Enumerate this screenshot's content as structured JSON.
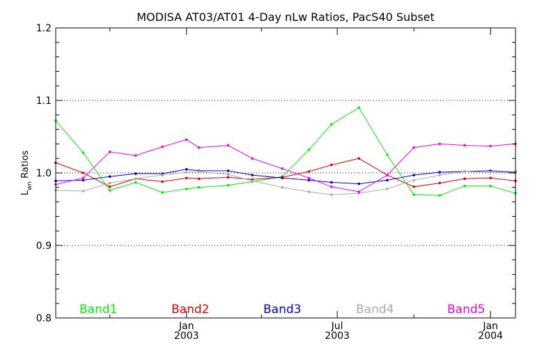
{
  "chart_data": {
    "type": "line",
    "title": "MODISA AT03/AT01 4-Day nLw Ratios, PacS40 Subset",
    "ylabel": "L",
    "ylabel_subscript": "wn",
    "ylabel_suffix": " Ratios",
    "ylim": [
      0.8,
      1.2
    ],
    "yticks": [
      "0.8",
      "0.9",
      "1.0",
      "1.1",
      "1.2"
    ],
    "xlim": [
      "2002-07-28",
      "2004-01-31"
    ],
    "xticks": [
      {
        "date": "2003-01-01",
        "month": "Jan",
        "year": "2003"
      },
      {
        "date": "2003-07-01",
        "month": "Jul",
        "year": "2003"
      },
      {
        "date": "2004-01-01",
        "month": "Jan",
        "year": "2004"
      }
    ],
    "grid_y": [
      0.9,
      1.0,
      1.1
    ],
    "grid": "dotted horizontal",
    "legend_position": "bottom, horizontal inside plot",
    "x": [
      "2002-07-28",
      "2002-08-30",
      "2002-10-01",
      "2002-11-01",
      "2002-12-03",
      "2003-01-01",
      "2003-01-16",
      "2003-02-20",
      "2003-03-21",
      "2003-04-26",
      "2003-05-28",
      "2003-06-24",
      "2003-07-27",
      "2003-08-30",
      "2003-10-01",
      "2003-11-01",
      "2003-12-01",
      "2004-01-01",
      "2004-01-31"
    ],
    "series": [
      {
        "name": "Band1",
        "color": "#00ee00",
        "values": [
          1.072,
          1.028,
          0.976,
          0.987,
          0.973,
          0.978,
          0.98,
          0.983,
          0.988,
          0.995,
          1.032,
          1.067,
          1.09,
          1.025,
          0.97,
          0.969,
          0.982,
          0.982,
          0.972
        ]
      },
      {
        "name": "Band2",
        "color": "#dd0000",
        "values": [
          1.014,
          1.0,
          0.981,
          0.992,
          0.988,
          0.993,
          0.992,
          0.994,
          0.991,
          0.994,
          1.002,
          1.011,
          1.02,
          0.997,
          0.981,
          0.986,
          0.992,
          0.993,
          0.989
        ]
      },
      {
        "name": "Band3",
        "color": "#0000cc",
        "values": [
          0.989,
          0.99,
          0.995,
          0.999,
          0.999,
          1.005,
          1.003,
          1.003,
          0.997,
          0.993,
          0.99,
          0.987,
          0.985,
          0.99,
          0.997,
          1.001,
          1.002,
          1.003,
          1.001
        ]
      },
      {
        "name": "Band4",
        "color": "#aaaaaa",
        "values": [
          0.976,
          0.975,
          0.986,
          0.992,
          0.997,
          1.001,
          1.002,
          0.998,
          0.989,
          0.98,
          0.974,
          0.97,
          0.972,
          0.978,
          0.99,
          0.997,
          1.002,
          1.001,
          1.0
        ]
      },
      {
        "name": "Band5",
        "color": "#ee00ee",
        "values": [
          0.984,
          0.993,
          1.029,
          1.024,
          1.036,
          1.046,
          1.035,
          1.038,
          1.02,
          1.006,
          0.993,
          0.981,
          0.974,
          0.997,
          1.035,
          1.04,
          1.038,
          1.037,
          1.04
        ]
      }
    ]
  }
}
